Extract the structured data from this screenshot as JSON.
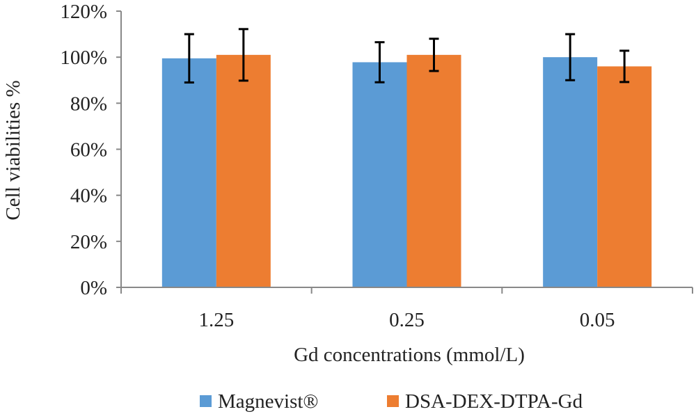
{
  "chart_data": {
    "type": "bar",
    "categories": [
      "1.25",
      "0.25",
      "0.05"
    ],
    "series": [
      {
        "name": "Magnevist®",
        "color": "#5B9BD5",
        "values": [
          99.5,
          97.8,
          100
        ],
        "error": [
          10.5,
          8.7,
          10
        ]
      },
      {
        "name": "DSA-DEX-DTPA-Gd",
        "color": "#ED7D31",
        "values": [
          101,
          101,
          96
        ],
        "error": [
          11.2,
          7,
          6.8
        ]
      }
    ],
    "ylim": [
      0,
      120
    ],
    "yticks": [
      "0%",
      "20%",
      "40%",
      "60%",
      "80%",
      "100%",
      "120%"
    ],
    "ylabel": "Cell viabilities  %",
    "xlabel": "Gd concentrations (mmol/L)",
    "legend_position": "bottom",
    "grid": false
  }
}
